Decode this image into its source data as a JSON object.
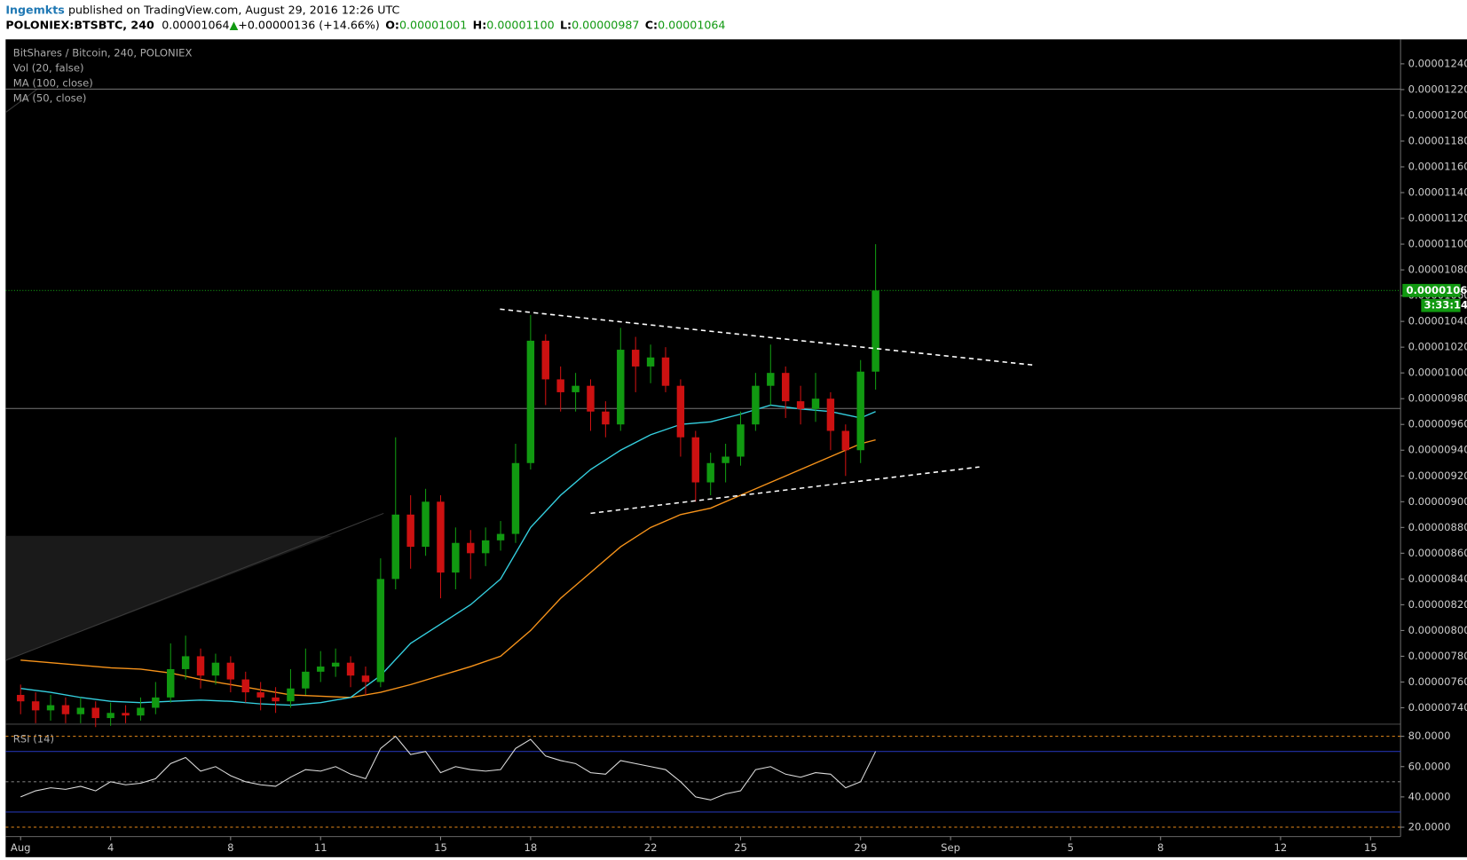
{
  "header": {
    "author": "Ingemkts",
    "published": "published on TradingView.com, August 29, 2016 12:26 UTC",
    "symbol": "POLONIEX:BTSBTC, 240",
    "last": "0.00001064",
    "arrow": "▲",
    "change": "+0.00000136 (+14.66%)",
    "o_label": "O:",
    "o": "0.00001001",
    "h_label": "H:",
    "h": "0.00001100",
    "l_label": "L:",
    "l": "0.00000987",
    "c_label": "C:",
    "c": "0.00001064"
  },
  "chart_data": {
    "type": "candlestick",
    "title": "BitShares / Bitcoin, 240, POLONIEX",
    "indicators": [
      "Vol (20, false)",
      "MA (100, close)",
      "MA (50, close)"
    ],
    "up_color": "#119911",
    "down_color": "#cc1111",
    "xlim": [
      0.5,
      47
    ],
    "ylim": [
      7.28e-06,
      1.259e-05
    ],
    "xticks": [
      {
        "value": 1,
        "label": "Aug"
      },
      4,
      8,
      11,
      15,
      18,
      22,
      25,
      29,
      {
        "value": 32,
        "label": "Sep"
      },
      {
        "value": 36,
        "label": "5"
      },
      {
        "value": 39,
        "label": "8"
      },
      {
        "value": 43,
        "label": "12"
      },
      {
        "value": 46,
        "label": "15"
      }
    ],
    "yticks": [
      {
        "value": 7.4e-06,
        "label": "0.00000740"
      },
      {
        "value": 7.6e-06,
        "label": "0.00000760"
      },
      {
        "value": 7.8e-06,
        "label": "0.00000780"
      },
      {
        "value": 8e-06,
        "label": "0.00000800"
      },
      {
        "value": 8.2e-06,
        "label": "0.00000820"
      },
      {
        "value": 8.4e-06,
        "label": "0.00000840"
      },
      {
        "value": 8.6e-06,
        "label": "0.00000860"
      },
      {
        "value": 8.8e-06,
        "label": "0.00000880"
      },
      {
        "value": 9e-06,
        "label": "0.00000900"
      },
      {
        "value": 9.2e-06,
        "label": "0.00000920"
      },
      {
        "value": 9.4e-06,
        "label": "0.00000940"
      },
      {
        "value": 9.6e-06,
        "label": "0.00000960"
      },
      {
        "value": 9.8e-06,
        "label": "0.00000980"
      },
      {
        "value": 1e-05,
        "label": "0.00001000"
      },
      {
        "value": 1.02e-05,
        "label": "0.00001020"
      },
      {
        "value": 1.04e-05,
        "label": "0.00001040"
      },
      {
        "value": 1.06e-05,
        "label": "0.00001060"
      },
      {
        "value": 1.08e-05,
        "label": "0.00001080"
      },
      {
        "value": 1.1e-05,
        "label": "0.00001100"
      },
      {
        "value": 1.12e-05,
        "label": "0.00001120"
      },
      {
        "value": 1.14e-05,
        "label": "0.00001140"
      },
      {
        "value": 1.16e-05,
        "label": "0.00001160"
      },
      {
        "value": 1.18e-05,
        "label": "0.00001180"
      },
      {
        "value": 1.2e-05,
        "label": "0.00001200"
      },
      {
        "value": 1.22e-05,
        "label": "0.00001220"
      },
      {
        "value": 1.24e-05,
        "label": "0.00001240"
      }
    ],
    "last_price": {
      "value": 1.064e-05,
      "label": "0.00001064"
    },
    "countdown": "3:33:14",
    "last_price_color": "#119911",
    "candles": {
      "x": [
        1,
        1.5,
        2,
        2.5,
        3,
        3.5,
        4,
        4.5,
        5,
        5.5,
        6,
        6.5,
        7,
        7.5,
        8,
        8.5,
        9,
        9.5,
        10,
        10.5,
        11,
        11.5,
        12,
        12.5,
        13,
        13.5,
        14,
        14.5,
        15,
        15.5,
        16,
        16.5,
        17,
        17.5,
        18,
        18.5,
        19,
        19.5,
        20,
        20.5,
        21,
        21.5,
        22,
        22.5,
        23,
        23.5,
        24,
        24.5,
        25,
        25.5,
        26,
        26.5,
        27,
        27.5,
        28,
        28.5,
        29,
        29.5
      ],
      "open": [
        7.5e-06,
        7.45e-06,
        7.38e-06,
        7.42e-06,
        7.35e-06,
        7.4e-06,
        7.32e-06,
        7.36e-06,
        7.34e-06,
        7.4e-06,
        7.48e-06,
        7.7e-06,
        7.8e-06,
        7.65e-06,
        7.75e-06,
        7.62e-06,
        7.52e-06,
        7.48e-06,
        7.45e-06,
        7.55e-06,
        7.68e-06,
        7.72e-06,
        7.75e-06,
        7.65e-06,
        7.6e-06,
        8.4e-06,
        8.9e-06,
        8.65e-06,
        9e-06,
        8.45e-06,
        8.68e-06,
        8.6e-06,
        8.7e-06,
        8.75e-06,
        9.3e-06,
        1.025e-05,
        9.95e-06,
        9.85e-06,
        9.9e-06,
        9.7e-06,
        9.6e-06,
        1.018e-05,
        1.005e-05,
        1.012e-05,
        9.9e-06,
        9.5e-06,
        9.15e-06,
        9.3e-06,
        9.35e-06,
        9.6e-06,
        9.9e-06,
        1e-05,
        9.78e-06,
        9.72e-06,
        9.8e-06,
        9.55e-06,
        9.4e-06,
        1.001e-05
      ],
      "high": [
        7.58e-06,
        7.52e-06,
        7.5e-06,
        7.48e-06,
        7.48e-06,
        7.45e-06,
        7.44e-06,
        7.42e-06,
        7.48e-06,
        7.6e-06,
        7.9e-06,
        7.96e-06,
        7.86e-06,
        7.82e-06,
        7.8e-06,
        7.68e-06,
        7.6e-06,
        7.56e-06,
        7.7e-06,
        7.86e-06,
        7.84e-06,
        7.86e-06,
        7.8e-06,
        7.72e-06,
        8.56e-06,
        9.5e-06,
        9.05e-06,
        9.1e-06,
        9.05e-06,
        8.8e-06,
        8.78e-06,
        8.8e-06,
        8.85e-06,
        9.45e-06,
        1.045e-05,
        1.03e-05,
        1.005e-05,
        1e-05,
        9.95e-06,
        9.78e-06,
        1.035e-05,
        1.028e-05,
        1.022e-05,
        1.02e-05,
        9.95e-06,
        9.55e-06,
        9.38e-06,
        9.45e-06,
        9.7e-06,
        1e-05,
        1.022e-05,
        1.005e-05,
        9.9e-06,
        1e-05,
        9.85e-06,
        9.6e-06,
        1.01e-05,
        1.1e-05
      ],
      "low": [
        7.35e-06,
        7.28e-06,
        7.3e-06,
        7.28e-06,
        7.28e-06,
        7.25e-06,
        7.26e-06,
        7.28e-06,
        7.3e-06,
        7.35e-06,
        7.44e-06,
        7.62e-06,
        7.55e-06,
        7.58e-06,
        7.52e-06,
        7.44e-06,
        7.38e-06,
        7.36e-06,
        7.4e-06,
        7.5e-06,
        7.6e-06,
        7.64e-06,
        7.56e-06,
        7.5e-06,
        7.56e-06,
        8.32e-06,
        8.48e-06,
        8.58e-06,
        8.25e-06,
        8.32e-06,
        8.4e-06,
        8.5e-06,
        8.62e-06,
        8.68e-06,
        9.25e-06,
        9.75e-06,
        9.7e-06,
        9.7e-06,
        9.55e-06,
        9.5e-06,
        9.55e-06,
        9.85e-06,
        9.92e-06,
        9.85e-06,
        9.35e-06,
        9e-06,
        9.05e-06,
        9.15e-06,
        9.28e-06,
        9.55e-06,
        9.75e-06,
        9.65e-06,
        9.6e-06,
        9.62e-06,
        9.4e-06,
        9.2e-06,
        9.3e-06,
        9.87e-06
      ],
      "close": [
        7.45e-06,
        7.38e-06,
        7.42e-06,
        7.35e-06,
        7.4e-06,
        7.32e-06,
        7.36e-06,
        7.34e-06,
        7.4e-06,
        7.48e-06,
        7.7e-06,
        7.8e-06,
        7.65e-06,
        7.75e-06,
        7.62e-06,
        7.52e-06,
        7.48e-06,
        7.45e-06,
        7.55e-06,
        7.68e-06,
        7.72e-06,
        7.75e-06,
        7.65e-06,
        7.6e-06,
        8.4e-06,
        8.9e-06,
        8.65e-06,
        9e-06,
        8.45e-06,
        8.68e-06,
        8.6e-06,
        8.7e-06,
        8.75e-06,
        9.3e-06,
        1.025e-05,
        9.95e-06,
        9.85e-06,
        9.9e-06,
        9.7e-06,
        9.6e-06,
        1.018e-05,
        1.005e-05,
        1.012e-05,
        9.9e-06,
        9.5e-06,
        9.15e-06,
        9.3e-06,
        9.35e-06,
        9.6e-06,
        9.9e-06,
        1e-05,
        9.78e-06,
        9.72e-06,
        9.8e-06,
        9.55e-06,
        9.4e-06,
        1.001e-05,
        1.064e-05
      ]
    },
    "ma_lines": [
      {
        "color": "#f7931a",
        "x": [
          1,
          2,
          3,
          4,
          5,
          6,
          7,
          8,
          9,
          10,
          11,
          12,
          13,
          14,
          15,
          16,
          17,
          18,
          19,
          20,
          21,
          22,
          23,
          24,
          25,
          26,
          27,
          28,
          29,
          29.5
        ],
        "values": [
          7.77e-06,
          7.75e-06,
          7.73e-06,
          7.71e-06,
          7.7e-06,
          7.67e-06,
          7.62e-06,
          7.58e-06,
          7.54e-06,
          7.5e-06,
          7.49e-06,
          7.48e-06,
          7.52e-06,
          7.58e-06,
          7.65e-06,
          7.72e-06,
          7.8e-06,
          8e-06,
          8.25e-06,
          8.45e-06,
          8.65e-06,
          8.8e-06,
          8.9e-06,
          8.95e-06,
          9.05e-06,
          9.15e-06,
          9.25e-06,
          9.35e-06,
          9.45e-06,
          9.48e-06
        ]
      },
      {
        "color": "#35d0e0",
        "x": [
          1,
          2,
          3,
          4,
          5,
          6,
          7,
          8,
          9,
          10,
          11,
          12,
          13,
          14,
          15,
          16,
          17,
          18,
          19,
          20,
          21,
          22,
          23,
          24,
          25,
          26,
          27,
          28,
          29,
          29.5
        ],
        "values": [
          7.55e-06,
          7.52e-06,
          7.48e-06,
          7.45e-06,
          7.44e-06,
          7.45e-06,
          7.46e-06,
          7.45e-06,
          7.43e-06,
          7.42e-06,
          7.44e-06,
          7.48e-06,
          7.65e-06,
          7.9e-06,
          8.05e-06,
          8.2e-06,
          8.4e-06,
          8.8e-06,
          9.05e-06,
          9.25e-06,
          9.4e-06,
          9.52e-06,
          9.6e-06,
          9.62e-06,
          9.68e-06,
          9.75e-06,
          9.72e-06,
          9.7e-06,
          9.65e-06,
          9.7e-06
        ]
      }
    ],
    "trendlines": [
      {
        "x": [
          16.98,
          34.8
        ],
        "values": [
          1.0495e-05,
          1.006e-05
        ]
      },
      {
        "x": [
          20.0,
          32.96
        ],
        "values": [
          8.91e-06,
          9.27e-06
        ]
      }
    ],
    "hlines": [
      1.2204e-05,
      9.724e-06
    ],
    "rsi": {
      "title": "RSI (14)",
      "ylim": [
        13.8,
        87.4
      ],
      "yticks": [
        {
          "value": 20,
          "label": "20.0000"
        },
        {
          "value": 40,
          "label": "40.0000"
        },
        {
          "value": 60,
          "label": "60.0000"
        },
        {
          "value": 80,
          "label": "80.0000"
        }
      ],
      "levels": [
        80,
        70,
        50,
        30,
        20
      ],
      "values": [
        40,
        44,
        46,
        45,
        47,
        44,
        50,
        48,
        49,
        52,
        62,
        66,
        57,
        60,
        54,
        50,
        48,
        47,
        53,
        58,
        57,
        60,
        55,
        52,
        72,
        80,
        68,
        70,
        56,
        60,
        58,
        57,
        58,
        72,
        78,
        67,
        64,
        62,
        56,
        55,
        64,
        62,
        60,
        58,
        50,
        40,
        38,
        42,
        44,
        58,
        60,
        55,
        53,
        56,
        55,
        46,
        50,
        70
      ]
    }
  }
}
